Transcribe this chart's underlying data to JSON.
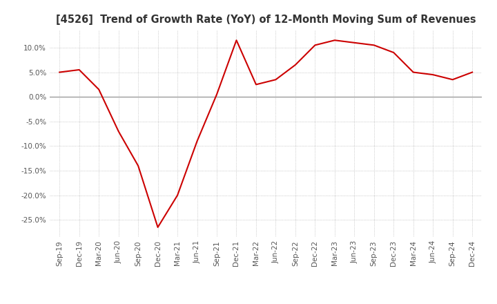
{
  "title": "[4526]  Trend of Growth Rate (YoY) of 12-Month Moving Sum of Revenues",
  "title_color": "#333333",
  "line_color": "#cc0000",
  "background_color": "#ffffff",
  "grid_color": "#aaaaaa",
  "x_labels": [
    "Sep-19",
    "Dec-19",
    "Mar-20",
    "Jun-20",
    "Sep-20",
    "Dec-20",
    "Mar-21",
    "Jun-21",
    "Sep-21",
    "Dec-21",
    "Mar-22",
    "Jun-22",
    "Sep-22",
    "Dec-22",
    "Mar-23",
    "Jun-23",
    "Sep-23",
    "Dec-23",
    "Mar-24",
    "Jun-24",
    "Sep-24",
    "Dec-24"
  ],
  "y_values": [
    5.0,
    5.5,
    1.5,
    -7.0,
    -14.0,
    -26.5,
    -20.0,
    -9.0,
    0.5,
    11.5,
    2.5,
    3.5,
    6.5,
    10.5,
    11.5,
    11.0,
    10.5,
    9.0,
    5.0,
    4.5,
    3.5,
    5.0
  ],
  "ylim": [
    -28.5,
    13.5
  ],
  "yticks": [
    10.0,
    5.0,
    0.0,
    -5.0,
    -10.0,
    -15.0,
    -20.0,
    -25.0
  ]
}
